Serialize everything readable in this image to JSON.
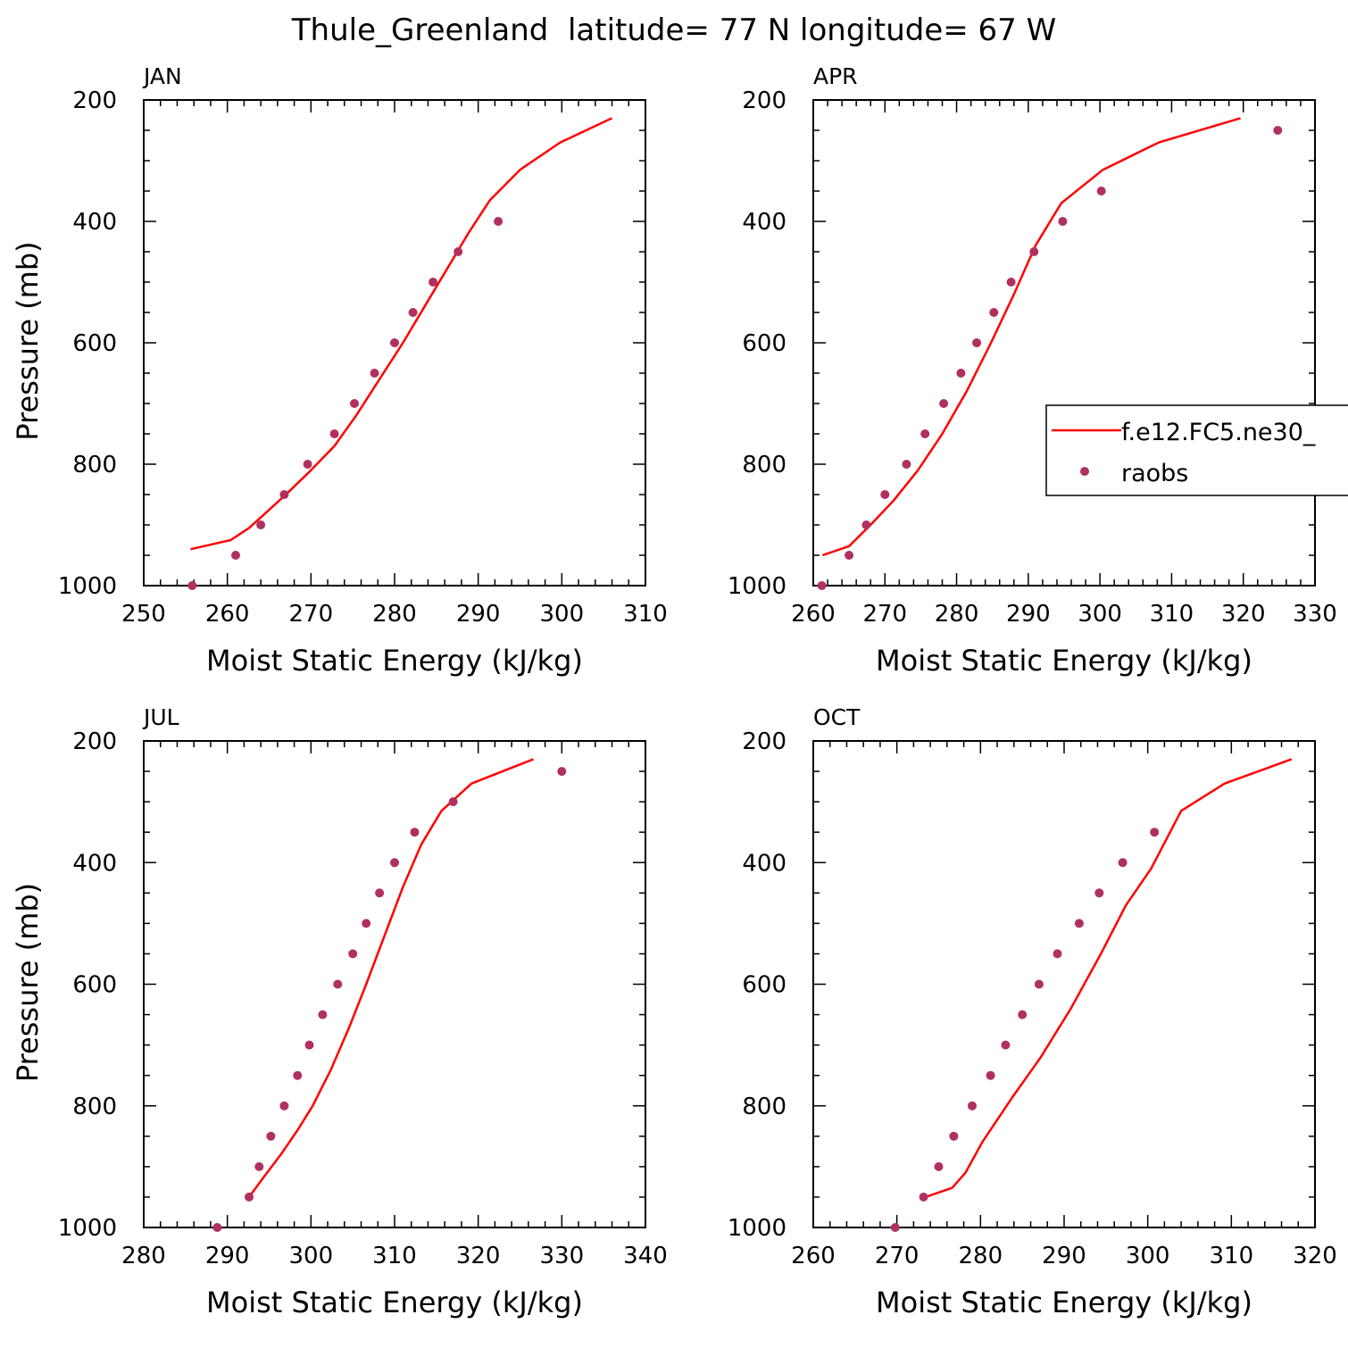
{
  "figure": {
    "title": "Thule_Greenland  latitude= 77 N longitude= 67 W"
  },
  "legend": {
    "placement": "center-right (over APR panel)",
    "model_label": "f.e12.FC5.ne30_",
    "obs_label": "raobs"
  },
  "colors": {
    "model_line": "#ff0000",
    "obs_marker": "#b03060",
    "axis": "#000000"
  },
  "chart_data": [
    {
      "type": "line",
      "panel": "JAN",
      "title": "JAN",
      "xlabel": "Moist Static Energy (kJ/kg)",
      "ylabel": "Pressure (mb)",
      "xlim": [
        250,
        310
      ],
      "ylim": [
        200,
        1000
      ],
      "y_inverted": true,
      "x_ticks": [
        250,
        260,
        270,
        280,
        290,
        300,
        310
      ],
      "y_ticks": [
        200,
        400,
        600,
        800,
        1000
      ],
      "series": [
        {
          "name": "f.e12.FC5.ne30_",
          "x": [
            255.6,
            260.4,
            262.6,
            264.6,
            267.0,
            270.0,
            272.8,
            275.4,
            278.2,
            281.0,
            283.6,
            286.2,
            288.8,
            291.4,
            295.0,
            299.8,
            306.0
          ],
          "y": [
            940,
            925,
            905,
            880,
            850,
            810,
            770,
            720,
            660,
            600,
            540,
            480,
            420,
            365,
            315,
            270,
            230
          ]
        },
        {
          "name": "raobs",
          "x": [
            255.8,
            261.0,
            264.0,
            266.8,
            269.6,
            272.8,
            275.2,
            277.6,
            280.0,
            282.2,
            284.6,
            287.6,
            292.4
          ],
          "y": [
            1000,
            950,
            900,
            850,
            800,
            750,
            700,
            650,
            600,
            550,
            500,
            450,
            400
          ]
        }
      ]
    },
    {
      "type": "line",
      "panel": "APR",
      "title": "APR",
      "xlabel": "Moist Static Energy (kJ/kg)",
      "ylabel": "",
      "xlim": [
        260,
        330
      ],
      "ylim": [
        200,
        1000
      ],
      "y_inverted": true,
      "x_ticks": [
        260,
        270,
        280,
        290,
        300,
        310,
        320,
        330
      ],
      "y_ticks": [
        200,
        400,
        600,
        800,
        1000
      ],
      "series": [
        {
          "name": "f.e12.FC5.ne30_",
          "x": [
            261.3,
            265.0,
            268.0,
            271.2,
            274.6,
            278.0,
            281.4,
            284.8,
            288.0,
            291.0,
            294.6,
            300.4,
            308.2,
            319.6
          ],
          "y": [
            950,
            935,
            900,
            860,
            810,
            750,
            680,
            600,
            520,
            440,
            370,
            315,
            270,
            230
          ]
        },
        {
          "name": "raobs",
          "x": [
            261.2,
            265.0,
            267.4,
            270.0,
            273.0,
            275.6,
            278.2,
            280.6,
            282.8,
            285.2,
            287.6,
            290.8,
            294.8,
            300.2,
            324.8
          ],
          "y": [
            1000,
            950,
            900,
            850,
            800,
            750,
            700,
            650,
            600,
            550,
            500,
            450,
            400,
            350,
            250
          ]
        }
      ]
    },
    {
      "type": "line",
      "panel": "JUL",
      "title": "JUL",
      "xlabel": "Moist Static Energy (kJ/kg)",
      "ylabel": "Pressure (mb)",
      "xlim": [
        280,
        340
      ],
      "ylim": [
        200,
        1000
      ],
      "y_inverted": true,
      "x_ticks": [
        280,
        290,
        300,
        310,
        320,
        330,
        340
      ],
      "y_ticks": [
        200,
        400,
        600,
        800,
        1000
      ],
      "series": [
        {
          "name": "f.e12.FC5.ne30_",
          "x": [
            292.6,
            294.2,
            296.4,
            298.4,
            300.2,
            302.4,
            304.6,
            306.6,
            308.8,
            311.0,
            313.2,
            315.6,
            319.2,
            326.6
          ],
          "y": [
            950,
            920,
            880,
            840,
            800,
            740,
            670,
            600,
            520,
            440,
            370,
            315,
            270,
            230
          ]
        },
        {
          "name": "raobs",
          "x": [
            288.8,
            292.6,
            293.8,
            295.2,
            296.8,
            298.4,
            299.8,
            301.4,
            303.2,
            305.0,
            306.6,
            308.2,
            310.0,
            312.4,
            317.0,
            330.0
          ],
          "y": [
            1000,
            950,
            900,
            850,
            800,
            750,
            700,
            650,
            600,
            550,
            500,
            450,
            400,
            350,
            300,
            250
          ]
        }
      ]
    },
    {
      "type": "line",
      "panel": "OCT",
      "title": "OCT",
      "xlabel": "Moist Static Energy (kJ/kg)",
      "ylabel": "",
      "xlim": [
        260,
        320
      ],
      "ylim": [
        200,
        1000
      ],
      "y_inverted": true,
      "x_ticks": [
        260,
        270,
        280,
        290,
        300,
        310,
        320
      ],
      "y_ticks": [
        200,
        400,
        600,
        800,
        1000
      ],
      "series": [
        {
          "name": "f.e12.FC5.ne30_",
          "x": [
            273.4,
            276.6,
            278.2,
            280.2,
            283.6,
            287.2,
            290.8,
            294.4,
            297.4,
            300.4,
            304.0,
            309.2,
            317.2
          ],
          "y": [
            950,
            935,
            910,
            860,
            790,
            720,
            640,
            550,
            470,
            410,
            315,
            270,
            230
          ]
        },
        {
          "name": "raobs",
          "x": [
            269.8,
            273.2,
            275.0,
            276.8,
            279.0,
            281.2,
            283.0,
            285.0,
            287.0,
            289.2,
            291.8,
            294.2,
            297.0,
            300.8
          ],
          "y": [
            1000,
            950,
            900,
            850,
            800,
            750,
            700,
            650,
            600,
            550,
            500,
            450,
            400,
            350
          ]
        }
      ]
    }
  ]
}
